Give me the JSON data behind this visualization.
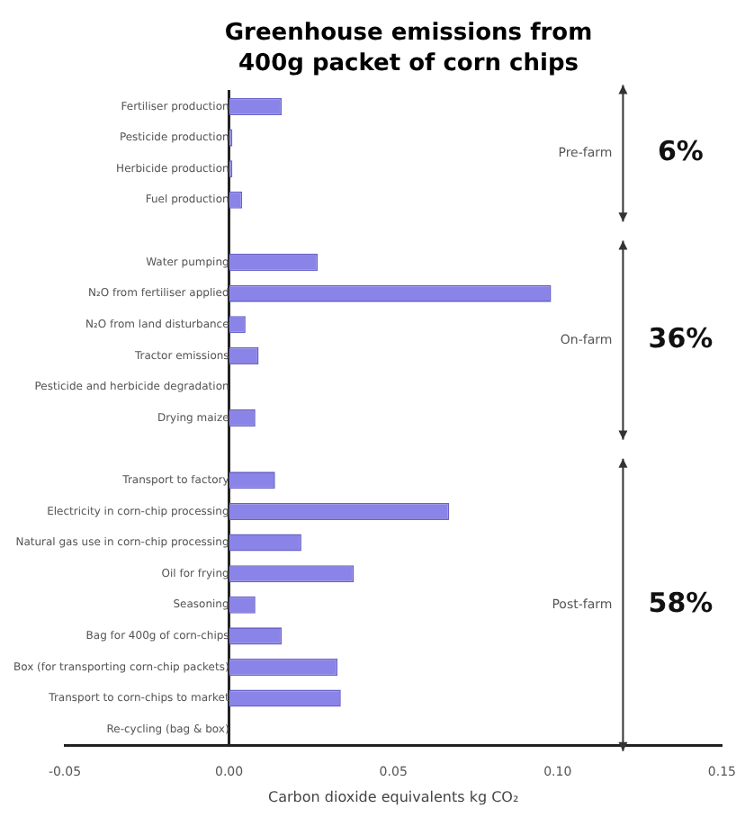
{
  "chart_data": {
    "type": "bar",
    "orientation": "horizontal",
    "title": "Greenhouse emissions from 400g packet of corn chips",
    "xlabel": "Carbon dioxide equivalents kg CO₂",
    "categories": [
      "Fertiliser production",
      "Pesticide production",
      "Herbicide production",
      "Fuel production",
      null,
      "Water pumping",
      "N₂O from fertiliser applied",
      "N₂O from land disturbance",
      "Tractor emissions",
      "Pesticide and herbicide degradation",
      "Drying maize",
      null,
      "Transport to factory",
      "Electricity in corn-chip processing",
      "Natural gas use in corn-chip processing",
      "Oil for frying",
      "Seasoning",
      "Bag for 400g of corn-chips",
      "Box (for transporting corn-chip packets)",
      "Transport to corn-chips to market",
      "Re-cycling (bag & box)"
    ],
    "values": [
      0.016,
      0.001,
      0.001,
      0.004,
      null,
      0.027,
      0.098,
      0.005,
      0.009,
      0,
      0.008,
      null,
      0.014,
      0.067,
      0.022,
      0.038,
      0.008,
      0.016,
      0.033,
      0.034,
      0
    ],
    "color": "#8a84e8",
    "xlim": [
      -0.05,
      0.15
    ],
    "xticks": [
      {
        "value": -0.05,
        "label": "-0.05"
      },
      {
        "value": 0,
        "label": "0.00"
      },
      {
        "value": 0.05,
        "label": "0.05"
      },
      {
        "value": 0.1,
        "label": "0.10"
      },
      {
        "value": 0.15,
        "label": "0.15"
      }
    ],
    "grid": false,
    "legend": false,
    "annotations": [
      "Pre-farm",
      "6%",
      "On-farm",
      "36%",
      "Post-farm",
      "58%"
    ]
  }
}
